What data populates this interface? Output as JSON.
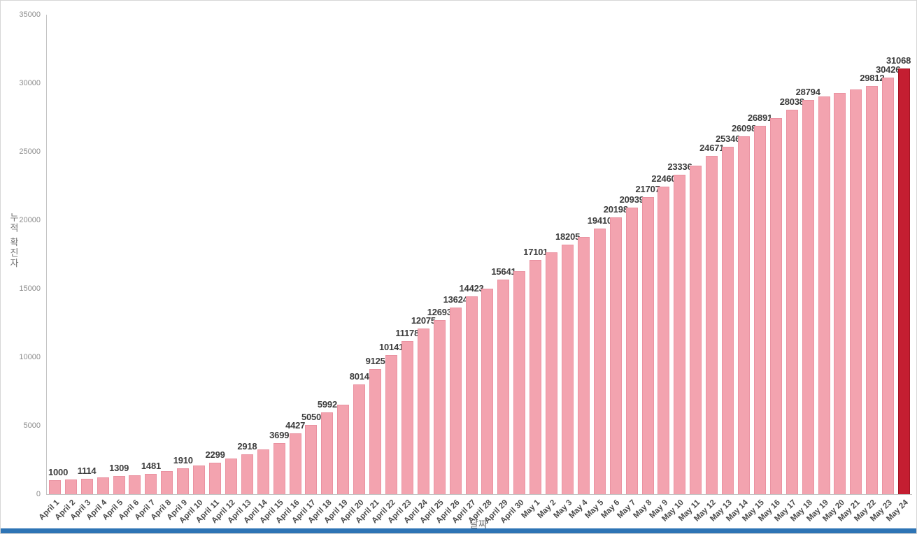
{
  "chart_data": {
    "type": "bar",
    "title": "",
    "xlabel": "날짜",
    "ylabel": "누적 확진자",
    "ylim": [
      0,
      35000
    ],
    "yticks": [
      0,
      5000,
      10000,
      15000,
      20000,
      25000,
      30000,
      35000
    ],
    "grid": false,
    "legend": "none",
    "highlight_index": 53,
    "categories": [
      "April 1",
      "April 2",
      "April 3",
      "April 4",
      "April 5",
      "April 6",
      "April 7",
      "April 8",
      "April 9",
      "April 10",
      "April 11",
      "April 12",
      "April 13",
      "April 14",
      "April 15",
      "April 16",
      "April 17",
      "April 18",
      "April 19",
      "April 20",
      "April 21",
      "April 22",
      "April 23",
      "April 24",
      "April 25",
      "April 26",
      "April 27",
      "April 28",
      "April 29",
      "April 30",
      "May 1",
      "May 2",
      "May 3",
      "May 4",
      "May 5",
      "May 6",
      "May 7",
      "May 8",
      "May 9",
      "May 10",
      "May 11",
      "May 12",
      "May 13",
      "May 14",
      "May 15",
      "May 16",
      "May 17",
      "May 18",
      "May 19",
      "May 20",
      "May 21",
      "May 22",
      "May 23",
      "May 24"
    ],
    "values": [
      1000,
      1050,
      1114,
      1200,
      1309,
      1390,
      1481,
      1680,
      1910,
      2090,
      2299,
      2590,
      2918,
      3290,
      3699,
      4427,
      5050,
      5992,
      6525,
      8014,
      9125,
      10141,
      11178,
      12075,
      12693,
      13624,
      14423,
      15000,
      15641,
      16300,
      17101,
      17650,
      18205,
      18800,
      19410,
      20198,
      20939,
      21707,
      22460,
      23336,
      24000,
      24671,
      25346,
      26098,
      26891,
      27450,
      28038,
      28794,
      29050,
      29300,
      29550,
      29812,
      30426,
      31068
    ],
    "data_labels": [
      1000,
      null,
      1114,
      null,
      1309,
      null,
      1481,
      null,
      1910,
      null,
      2299,
      null,
      2918,
      null,
      3699,
      4427,
      5050,
      5992,
      null,
      8014,
      9125,
      10141,
      11178,
      12075,
      12693,
      13624,
      14423,
      null,
      15641,
      null,
      17101,
      null,
      18205,
      null,
      19410,
      20198,
      20939,
      21707,
      22460,
      23336,
      null,
      24671,
      25346,
      26098,
      26891,
      null,
      28038,
      28794,
      null,
      null,
      null,
      29812,
      30426,
      31068
    ],
    "colors": {
      "bar_color": "#F3A3AF",
      "bar_border_color": "#EA92A1",
      "highlight_color": "#C41E31",
      "highlight_border_color": "#A31523",
      "axis_line_color": "#C4C4C4",
      "value_label_color": "#3C3C3C",
      "xtick_color": "#4A4A4A",
      "ytick_color": "#8C8C8C",
      "axis_title_color": "#757575",
      "background_color": "#FFFFFF",
      "frame_border_color": "#D6D6D6",
      "bottom_strip_color": "#2E74B5"
    }
  }
}
